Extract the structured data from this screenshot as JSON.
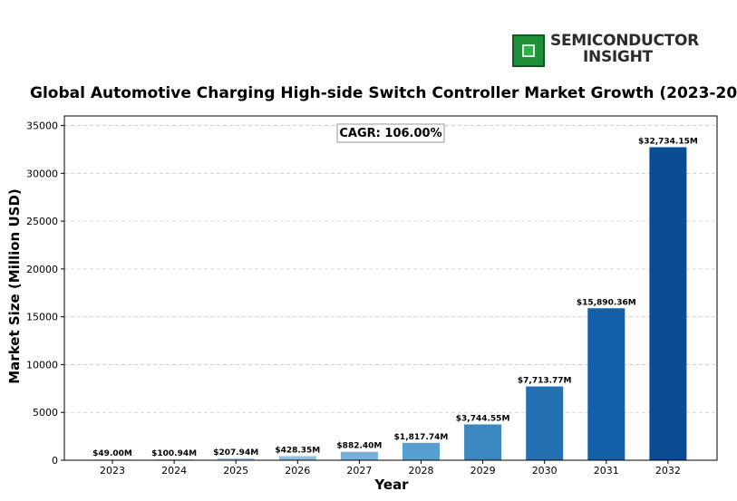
{
  "logo": {
    "line1": "SEMICONDUCTOR",
    "line2": "INSIGHT"
  },
  "chart_data": {
    "type": "bar",
    "title": "Global Automotive Charging High-side Switch Controller Market Growth (2023-20",
    "xlabel": "Year",
    "ylabel": "Market Size (Million USD)",
    "ylim": [
      0,
      36000
    ],
    "yticks": [
      0,
      5000,
      10000,
      15000,
      20000,
      25000,
      30000,
      35000
    ],
    "grid": true,
    "categories": [
      "2023",
      "2024",
      "2025",
      "2026",
      "2027",
      "2028",
      "2029",
      "2030",
      "2031",
      "2032"
    ],
    "values": [
      49.0,
      100.94,
      207.94,
      428.35,
      882.4,
      1817.74,
      3744.55,
      7713.77,
      15890.36,
      32734.15
    ],
    "data_labels": [
      "$49.00M",
      "$100.94M",
      "$207.94M",
      "$428.35M",
      "$882.40M",
      "$1,817.74M",
      "$3,744.55M",
      "$7,713.77M",
      "$15,890.36M",
      "$32,734.15M"
    ],
    "colors": [
      "#c6dbef",
      "#b7d3ea",
      "#a6cbe5",
      "#92c0df",
      "#74b0d8",
      "#55a0d0",
      "#3b87c0",
      "#2570b3",
      "#1460a8",
      "#0a4d94"
    ],
    "annotation": "CAGR: 106.00%"
  }
}
